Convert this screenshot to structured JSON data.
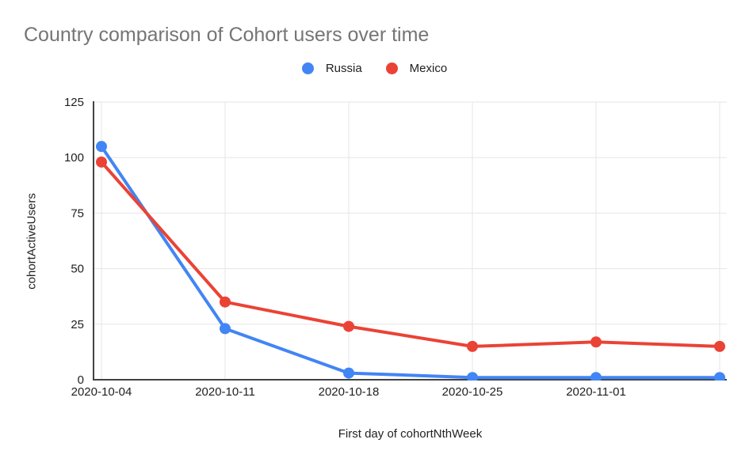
{
  "chart_data": {
    "type": "line",
    "title": "Country comparison of Cohort users over time",
    "xlabel": "First day of cohortNthWeek",
    "ylabel": "cohortActiveUsers",
    "categories": [
      "2020-10-04",
      "2020-10-11",
      "2020-10-18",
      "2020-10-25",
      "2020-11-01",
      ""
    ],
    "y_ticks": [
      0,
      25,
      50,
      75,
      100,
      125
    ],
    "ylim": [
      0,
      125
    ],
    "grid": true,
    "legend_position": "top",
    "series": [
      {
        "name": "Russia",
        "color": "#4285F4",
        "values": [
          105,
          23,
          3,
          1,
          1,
          1
        ]
      },
      {
        "name": "Mexico",
        "color": "#EA4335",
        "values": [
          98,
          35,
          24,
          15,
          17,
          15
        ]
      }
    ]
  },
  "colors": {
    "background": "#ffffff",
    "title_text": "#757575",
    "tick_text": "#1f1f1f",
    "axis_line": "#424242",
    "grid_line": "#e6e6e6",
    "russia_blue": "#4285F4",
    "mexico_red": "#EA4335"
  }
}
